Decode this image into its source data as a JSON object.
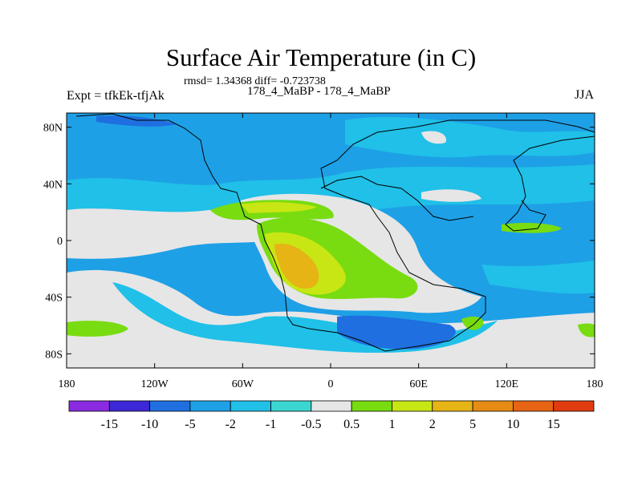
{
  "title": "Surface Air Temperature (in C)",
  "stats_line": "rmsd= 1.34368 diff= -0.723738",
  "left_label": "Expt = tfkEk-tfjAk",
  "center_label": "178_4_MaBP - 178_4_MaBP",
  "right_label": "JJA",
  "lat_ticks": [
    "80N",
    "40N",
    "0",
    "40S",
    "80S"
  ],
  "lon_ticks": [
    "180",
    "120W",
    "60W",
    "0",
    "60E",
    "120E",
    "180"
  ],
  "colorbar": {
    "labels": [
      "-15",
      "-10",
      "-5",
      "-2",
      "-1",
      "-0.5",
      "0.5",
      "1",
      "2",
      "5",
      "10",
      "15"
    ],
    "colors": [
      "#8a2be2",
      "#3c28d6",
      "#1f6fe0",
      "#1ea0e6",
      "#20c0e8",
      "#3cd6d0",
      "#e6e6e6",
      "#78dc10",
      "#c8e614",
      "#e6b414",
      "#e68c14",
      "#e66414",
      "#e03c10"
    ]
  },
  "colors": {
    "background": "#ffffff",
    "ocean_base": "#1ea0e6",
    "neutral": "#e6e6e6",
    "coastline": "#000000"
  }
}
